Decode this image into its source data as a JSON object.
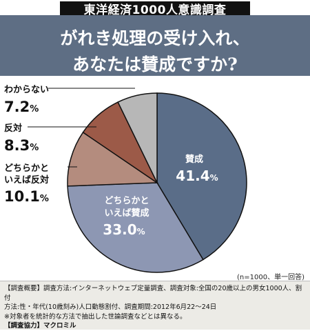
{
  "survey_tag": "東洋経済1000人意識調査",
  "question": {
    "line1": "がれき処理の受け入れ、",
    "line2": "あなたは賛成ですか?"
  },
  "note": "(n=1000、単一回答)",
  "footer": {
    "line1": "【調査概要】調査方法:インターネットウェブ定量調査、調査対象:全国の20歳以上の男女1000人、割付",
    "line2": "方法:性・年代(10歳刻み)人口動態割付、調査期間:2012年6月22〜24日",
    "line3": "※対象者を統計的な方法で抽出した世論調査などとは異なる。",
    "line4": "【調査協力】マクロミル"
  },
  "colors": {
    "banner": "#5e6e84",
    "agree": "#5a6d88",
    "somewhat_agree": "#8d97b3",
    "somewhat_oppose": "#b48c7e",
    "oppose": "#9c5a48",
    "dont_know": "#b7b7b7"
  },
  "chart_data": {
    "type": "pie",
    "unit": "%",
    "slices": [
      {
        "label": "賛成",
        "label_lines": [
          "賛成"
        ],
        "value": 41.4,
        "color": "#5a6d88"
      },
      {
        "label": "どちらかといえば賛成",
        "label_lines": [
          "どちらかと",
          "いえば賛成"
        ],
        "value": 33.0,
        "color": "#8d97b3"
      },
      {
        "label": "どちらかといえば反対",
        "label_lines": [
          "どちらかと",
          "いえば反対"
        ],
        "value": 10.1,
        "color": "#b48c7e"
      },
      {
        "label": "反対",
        "label_lines": [
          "反対"
        ],
        "value": 8.3,
        "color": "#9c5a48"
      },
      {
        "label": "わからない",
        "label_lines": [
          "わからない"
        ],
        "value": 7.2,
        "color": "#b7b7b7"
      }
    ]
  }
}
